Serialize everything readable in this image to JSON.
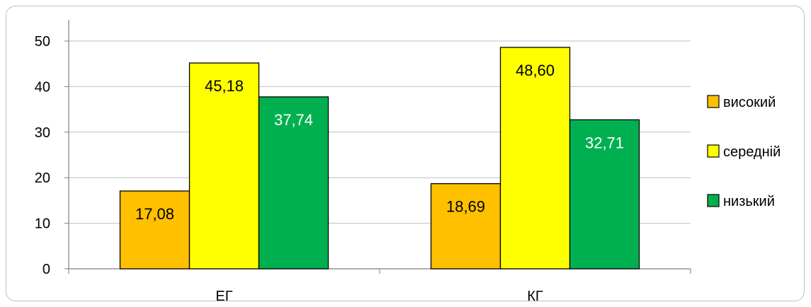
{
  "chart_data": {
    "type": "bar",
    "title": "",
    "xlabel": "",
    "ylabel": "",
    "categories": [
      "ЕГ",
      "КГ"
    ],
    "series": [
      {
        "name": "високий",
        "values": [
          17.08,
          18.69
        ],
        "labels": [
          "17,08",
          "18,69"
        ],
        "color": "#FFC000",
        "label_color": "#000000"
      },
      {
        "name": "середній",
        "values": [
          45.18,
          48.6
        ],
        "labels": [
          "45,18",
          "48,60"
        ],
        "color": "#FFFF00",
        "label_color": "#000000"
      },
      {
        "name": "низький",
        "values": [
          37.74,
          32.71
        ],
        "labels": [
          "37,74",
          "32,71"
        ],
        "color": "#00B050",
        "label_color": "#ffffff"
      }
    ],
    "ylim": [
      0,
      50
    ],
    "yticks": [
      "0",
      "10",
      "20",
      "30",
      "40",
      "50"
    ],
    "grid": true,
    "legend_position": "right"
  }
}
